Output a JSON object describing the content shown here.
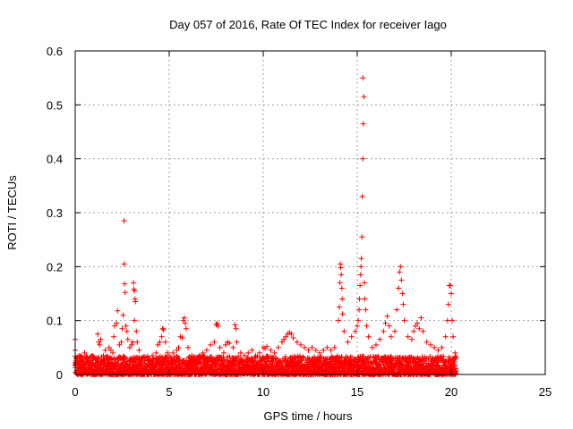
{
  "chart_data": {
    "type": "scatter",
    "title": "Day 057 of 2016, Rate Of TEC Index for receiver Iago",
    "xlabel": "GPS time / hours",
    "ylabel": "ROTI / TECUs",
    "xlim": [
      0,
      25
    ],
    "ylim": [
      0,
      0.6
    ],
    "xticks": [
      0,
      5,
      10,
      15,
      20,
      25
    ],
    "xtick_labels": [
      "0",
      "5",
      "10",
      "15",
      "20",
      "25"
    ],
    "yticks": [
      0,
      0.1,
      0.2,
      0.3,
      0.4,
      0.5,
      0.6
    ],
    "ytick_labels": [
      "0",
      "0.1",
      "0.2",
      "0.3",
      "0.4",
      "0.5",
      "0.6"
    ],
    "grid": true,
    "marker": "+",
    "color": "#ff0000",
    "series": [
      {
        "name": "ROTI",
        "points": [
          [
            0.0,
            0.065
          ],
          [
            0.0,
            0.045
          ],
          [
            0.05,
            0.03
          ],
          [
            0.1,
            0.02
          ],
          [
            0.2,
            0.035
          ],
          [
            0.35,
            0.028
          ],
          [
            0.5,
            0.04
          ],
          [
            0.6,
            0.02
          ],
          [
            0.8,
            0.025
          ],
          [
            0.9,
            0.035
          ],
          [
            1.0,
            0.03
          ],
          [
            1.1,
            0.02
          ],
          [
            1.2,
            0.075
          ],
          [
            1.25,
            0.06
          ],
          [
            1.3,
            0.055
          ],
          [
            1.35,
            0.065
          ],
          [
            1.5,
            0.035
          ],
          [
            1.6,
            0.045
          ],
          [
            1.7,
            0.03
          ],
          [
            1.8,
            0.05
          ],
          [
            1.9,
            0.045
          ],
          [
            2.0,
            0.04
          ],
          [
            2.05,
            0.07
          ],
          [
            2.1,
            0.09
          ],
          [
            2.2,
            0.095
          ],
          [
            2.25,
            0.118
          ],
          [
            2.35,
            0.055
          ],
          [
            2.45,
            0.06
          ],
          [
            2.5,
            0.085
          ],
          [
            2.55,
            0.11
          ],
          [
            2.6,
            0.285
          ],
          [
            2.6,
            0.205
          ],
          [
            2.62,
            0.168
          ],
          [
            2.65,
            0.152
          ],
          [
            2.7,
            0.09
          ],
          [
            2.75,
            0.08
          ],
          [
            2.8,
            0.065
          ],
          [
            2.9,
            0.05
          ],
          [
            3.0,
            0.055
          ],
          [
            3.05,
            0.06
          ],
          [
            3.1,
            0.17
          ],
          [
            3.12,
            0.158
          ],
          [
            3.15,
            0.155
          ],
          [
            3.18,
            0.14
          ],
          [
            3.2,
            0.135
          ],
          [
            3.15,
            0.1
          ],
          [
            3.25,
            0.08
          ],
          [
            3.3,
            0.06
          ],
          [
            3.4,
            0.045
          ],
          [
            3.5,
            0.03
          ],
          [
            3.7,
            0.025
          ],
          [
            3.9,
            0.03
          ],
          [
            4.1,
            0.035
          ],
          [
            4.3,
            0.04
          ],
          [
            4.4,
            0.055
          ],
          [
            4.5,
            0.06
          ],
          [
            4.6,
            0.07
          ],
          [
            4.65,
            0.085
          ],
          [
            4.7,
            0.083
          ],
          [
            4.8,
            0.06
          ],
          [
            4.9,
            0.04
          ],
          [
            5.0,
            0.035
          ],
          [
            5.2,
            0.04
          ],
          [
            5.4,
            0.045
          ],
          [
            5.5,
            0.05
          ],
          [
            5.6,
            0.07
          ],
          [
            5.7,
            0.068
          ],
          [
            5.75,
            0.1
          ],
          [
            5.8,
            0.105
          ],
          [
            5.85,
            0.095
          ],
          [
            5.9,
            0.085
          ],
          [
            6.0,
            0.05
          ],
          [
            6.2,
            0.035
          ],
          [
            6.4,
            0.03
          ],
          [
            6.6,
            0.035
          ],
          [
            6.8,
            0.04
          ],
          [
            7.0,
            0.045
          ],
          [
            7.2,
            0.055
          ],
          [
            7.4,
            0.06
          ],
          [
            7.5,
            0.092
          ],
          [
            7.55,
            0.095
          ],
          [
            7.6,
            0.09
          ],
          [
            7.7,
            0.05
          ],
          [
            7.9,
            0.04
          ],
          [
            8.0,
            0.055
          ],
          [
            8.1,
            0.06
          ],
          [
            8.2,
            0.058
          ],
          [
            8.4,
            0.05
          ],
          [
            8.5,
            0.092
          ],
          [
            8.55,
            0.085
          ],
          [
            8.6,
            0.06
          ],
          [
            8.8,
            0.04
          ],
          [
            9.0,
            0.035
          ],
          [
            9.2,
            0.04
          ],
          [
            9.4,
            0.045
          ],
          [
            9.6,
            0.035
          ],
          [
            9.8,
            0.04
          ],
          [
            10.0,
            0.05
          ],
          [
            10.1,
            0.048
          ],
          [
            10.2,
            0.052
          ],
          [
            10.4,
            0.045
          ],
          [
            10.6,
            0.04
          ],
          [
            10.8,
            0.05
          ],
          [
            11.0,
            0.06
          ],
          [
            11.1,
            0.065
          ],
          [
            11.2,
            0.07
          ],
          [
            11.3,
            0.075
          ],
          [
            11.4,
            0.078
          ],
          [
            11.5,
            0.075
          ],
          [
            11.6,
            0.068
          ],
          [
            11.8,
            0.06
          ],
          [
            12.0,
            0.055
          ],
          [
            12.2,
            0.05
          ],
          [
            12.4,
            0.045
          ],
          [
            12.6,
            0.05
          ],
          [
            12.8,
            0.045
          ],
          [
            13.0,
            0.04
          ],
          [
            13.2,
            0.045
          ],
          [
            13.4,
            0.05
          ],
          [
            13.6,
            0.045
          ],
          [
            13.8,
            0.05
          ],
          [
            14.0,
            0.1
          ],
          [
            14.05,
            0.125
          ],
          [
            14.08,
            0.17
          ],
          [
            14.1,
            0.205
          ],
          [
            14.12,
            0.198
          ],
          [
            14.15,
            0.185
          ],
          [
            14.18,
            0.16
          ],
          [
            14.2,
            0.14
          ],
          [
            14.22,
            0.112
          ],
          [
            14.3,
            0.08
          ],
          [
            14.5,
            0.06
          ],
          [
            14.7,
            0.07
          ],
          [
            14.9,
            0.08
          ],
          [
            15.0,
            0.09
          ],
          [
            15.05,
            0.1
          ],
          [
            15.1,
            0.12
          ],
          [
            15.12,
            0.14
          ],
          [
            15.15,
            0.165
          ],
          [
            15.18,
            0.185
          ],
          [
            15.2,
            0.2
          ],
          [
            15.22,
            0.215
          ],
          [
            15.25,
            0.255
          ],
          [
            15.27,
            0.33
          ],
          [
            15.3,
            0.4
          ],
          [
            15.32,
            0.465
          ],
          [
            15.35,
            0.515
          ],
          [
            15.3,
            0.55
          ],
          [
            15.38,
            0.17
          ],
          [
            15.4,
            0.14
          ],
          [
            15.45,
            0.12
          ],
          [
            15.5,
            0.09
          ],
          [
            15.6,
            0.07
          ],
          [
            15.8,
            0.05
          ],
          [
            16.0,
            0.055
          ],
          [
            16.2,
            0.065
          ],
          [
            16.4,
            0.08
          ],
          [
            16.5,
            0.095
          ],
          [
            16.6,
            0.108
          ],
          [
            16.7,
            0.09
          ],
          [
            16.8,
            0.07
          ],
          [
            17.0,
            0.08
          ],
          [
            17.1,
            0.12
          ],
          [
            17.2,
            0.16
          ],
          [
            17.25,
            0.19
          ],
          [
            17.3,
            0.2
          ],
          [
            17.35,
            0.175
          ],
          [
            17.4,
            0.15
          ],
          [
            17.45,
            0.13
          ],
          [
            17.5,
            0.1
          ],
          [
            17.7,
            0.07
          ],
          [
            17.9,
            0.065
          ],
          [
            18.0,
            0.08
          ],
          [
            18.1,
            0.09
          ],
          [
            18.2,
            0.095
          ],
          [
            18.3,
            0.085
          ],
          [
            18.4,
            0.105
          ],
          [
            18.5,
            0.08
          ],
          [
            18.7,
            0.06
          ],
          [
            18.9,
            0.055
          ],
          [
            19.1,
            0.05
          ],
          [
            19.3,
            0.045
          ],
          [
            19.5,
            0.05
          ],
          [
            19.7,
            0.07
          ],
          [
            19.8,
            0.1
          ],
          [
            19.85,
            0.13
          ],
          [
            19.9,
            0.165
          ],
          [
            19.95,
            0.165
          ],
          [
            20.0,
            0.15
          ],
          [
            20.05,
            0.1
          ],
          [
            20.1,
            0.07
          ],
          [
            20.2,
            0.04
          ]
        ]
      }
    ]
  }
}
